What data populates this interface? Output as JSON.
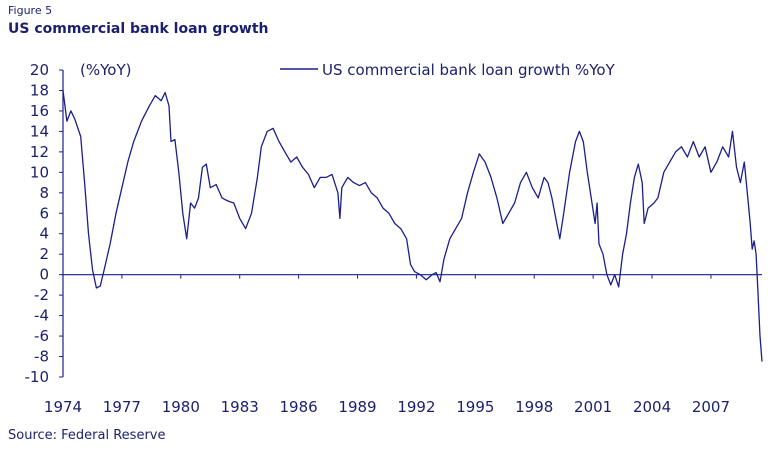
{
  "figure_label": "Figure 5",
  "title": "US commercial bank loan growth",
  "source": "Source: Federal Reserve",
  "chart_data": {
    "type": "line",
    "unit_label": "(%YoY)",
    "legend_placement": "top",
    "ylim": [
      -10,
      20
    ],
    "y_ticks": [
      20,
      18,
      16,
      14,
      12,
      10,
      8,
      6,
      4,
      2,
      0,
      -2,
      -4,
      -6,
      -8,
      -10
    ],
    "x_ticks": [
      "1974",
      "1977",
      "1980",
      "1983",
      "1986",
      "1989",
      "1992",
      "1995",
      "1998",
      "2001",
      "2004",
      "2007"
    ],
    "x_range": [
      1974.0,
      2009.6
    ],
    "grid": false,
    "line_color": "#1a1f8c",
    "series": [
      {
        "name": "US commercial bank loan growth %YoY",
        "points": [
          [
            1974.0,
            18.0
          ],
          [
            1974.2,
            15.0
          ],
          [
            1974.4,
            16.0
          ],
          [
            1974.6,
            15.2
          ],
          [
            1974.9,
            13.5
          ],
          [
            1975.1,
            9.0
          ],
          [
            1975.3,
            4.0
          ],
          [
            1975.5,
            0.5
          ],
          [
            1975.7,
            -1.3
          ],
          [
            1975.9,
            -1.1
          ],
          [
            1976.1,
            0.5
          ],
          [
            1976.4,
            3.0
          ],
          [
            1976.7,
            6.0
          ],
          [
            1977.0,
            8.5
          ],
          [
            1977.3,
            11.0
          ],
          [
            1977.6,
            13.0
          ],
          [
            1978.0,
            15.0
          ],
          [
            1978.4,
            16.5
          ],
          [
            1978.7,
            17.5
          ],
          [
            1979.0,
            17.0
          ],
          [
            1979.2,
            17.8
          ],
          [
            1979.4,
            16.5
          ],
          [
            1979.5,
            13.0
          ],
          [
            1979.7,
            13.2
          ],
          [
            1979.9,
            10.0
          ],
          [
            1980.1,
            6.0
          ],
          [
            1980.3,
            3.5
          ],
          [
            1980.5,
            7.0
          ],
          [
            1980.7,
            6.5
          ],
          [
            1980.9,
            7.5
          ],
          [
            1981.1,
            10.5
          ],
          [
            1981.3,
            10.8
          ],
          [
            1981.5,
            8.5
          ],
          [
            1981.8,
            8.8
          ],
          [
            1982.1,
            7.5
          ],
          [
            1982.4,
            7.2
          ],
          [
            1982.7,
            7.0
          ],
          [
            1983.0,
            5.5
          ],
          [
            1983.3,
            4.5
          ],
          [
            1983.6,
            6.0
          ],
          [
            1983.9,
            9.5
          ],
          [
            1984.1,
            12.5
          ],
          [
            1984.4,
            14.0
          ],
          [
            1984.7,
            14.3
          ],
          [
            1985.0,
            13.0
          ],
          [
            1985.3,
            12.0
          ],
          [
            1985.6,
            11.0
          ],
          [
            1985.9,
            11.5
          ],
          [
            1986.2,
            10.5
          ],
          [
            1986.5,
            9.8
          ],
          [
            1986.8,
            8.5
          ],
          [
            1987.1,
            9.5
          ],
          [
            1987.4,
            9.5
          ],
          [
            1987.7,
            9.8
          ],
          [
            1988.0,
            8.0
          ],
          [
            1988.1,
            5.5
          ],
          [
            1988.2,
            8.5
          ],
          [
            1988.5,
            9.5
          ],
          [
            1988.8,
            9.0
          ],
          [
            1989.1,
            8.7
          ],
          [
            1989.4,
            9.0
          ],
          [
            1989.7,
            8.0
          ],
          [
            1990.0,
            7.5
          ],
          [
            1990.3,
            6.5
          ],
          [
            1990.6,
            6.0
          ],
          [
            1990.9,
            5.0
          ],
          [
            1991.2,
            4.5
          ],
          [
            1991.5,
            3.5
          ],
          [
            1991.7,
            1.0
          ],
          [
            1991.9,
            0.3
          ],
          [
            1992.2,
            0.0
          ],
          [
            1992.5,
            -0.5
          ],
          [
            1992.8,
            0.0
          ],
          [
            1993.0,
            0.2
          ],
          [
            1993.2,
            -0.7
          ],
          [
            1993.4,
            1.5
          ],
          [
            1993.7,
            3.5
          ],
          [
            1994.0,
            4.5
          ],
          [
            1994.3,
            5.5
          ],
          [
            1994.6,
            8.0
          ],
          [
            1994.9,
            10.0
          ],
          [
            1995.2,
            11.8
          ],
          [
            1995.5,
            11.0
          ],
          [
            1995.8,
            9.5
          ],
          [
            1996.1,
            7.5
          ],
          [
            1996.4,
            5.0
          ],
          [
            1996.7,
            6.0
          ],
          [
            1997.0,
            7.0
          ],
          [
            1997.3,
            9.0
          ],
          [
            1997.6,
            10.0
          ],
          [
            1997.9,
            8.5
          ],
          [
            1998.2,
            7.5
          ],
          [
            1998.5,
            9.5
          ],
          [
            1998.7,
            9.0
          ],
          [
            1998.9,
            7.5
          ],
          [
            1999.1,
            5.5
          ],
          [
            1999.3,
            3.5
          ],
          [
            1999.5,
            6.0
          ],
          [
            1999.8,
            10.0
          ],
          [
            2000.1,
            13.0
          ],
          [
            2000.3,
            14.0
          ],
          [
            2000.5,
            13.0
          ],
          [
            2000.7,
            10.0
          ],
          [
            2000.9,
            7.5
          ],
          [
            2001.1,
            5.0
          ],
          [
            2001.2,
            7.0
          ],
          [
            2001.3,
            3.0
          ],
          [
            2001.5,
            2.0
          ],
          [
            2001.7,
            0.0
          ],
          [
            2001.9,
            -1.0
          ],
          [
            2002.1,
            0.0
          ],
          [
            2002.3,
            -1.2
          ],
          [
            2002.5,
            2.0
          ],
          [
            2002.7,
            4.0
          ],
          [
            2002.9,
            7.0
          ],
          [
            2003.1,
            9.5
          ],
          [
            2003.3,
            10.8
          ],
          [
            2003.5,
            9.0
          ],
          [
            2003.6,
            5.0
          ],
          [
            2003.8,
            6.5
          ],
          [
            2004.1,
            7.0
          ],
          [
            2004.3,
            7.5
          ],
          [
            2004.6,
            10.0
          ],
          [
            2004.9,
            11.0
          ],
          [
            2005.2,
            12.0
          ],
          [
            2005.5,
            12.5
          ],
          [
            2005.8,
            11.5
          ],
          [
            2006.1,
            13.0
          ],
          [
            2006.4,
            11.5
          ],
          [
            2006.7,
            12.5
          ],
          [
            2007.0,
            10.0
          ],
          [
            2007.3,
            11.0
          ],
          [
            2007.6,
            12.5
          ],
          [
            2007.9,
            11.5
          ],
          [
            2008.1,
            14.0
          ],
          [
            2008.3,
            10.5
          ],
          [
            2008.5,
            9.0
          ],
          [
            2008.7,
            11.0
          ],
          [
            2008.9,
            7.0
          ],
          [
            2009.0,
            5.0
          ],
          [
            2009.1,
            2.5
          ],
          [
            2009.2,
            3.3
          ],
          [
            2009.3,
            2.0
          ],
          [
            2009.4,
            -2.0
          ],
          [
            2009.5,
            -6.0
          ],
          [
            2009.6,
            -8.5
          ]
        ]
      }
    ]
  }
}
